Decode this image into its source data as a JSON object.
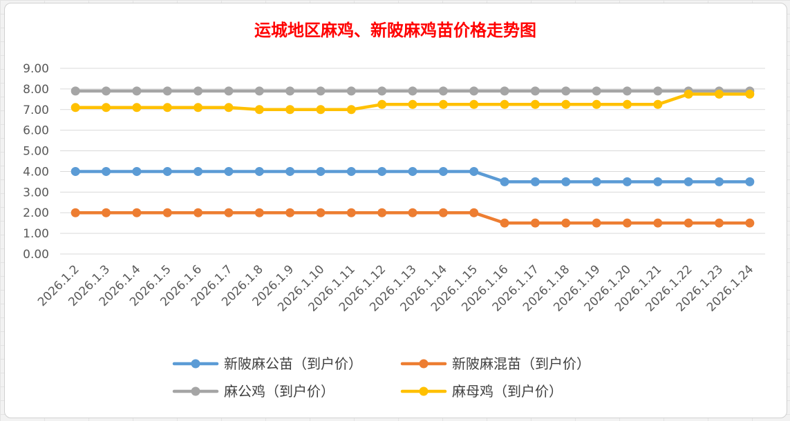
{
  "chart_data": {
    "type": "line",
    "title": "运城地区麻鸡、新陂麻鸡苗价格走势图",
    "xlabel": "",
    "ylabel": "",
    "ylim": [
      0,
      9
    ],
    "y_ticks": [
      "0.00",
      "1.00",
      "2.00",
      "3.00",
      "4.00",
      "5.00",
      "6.00",
      "7.00",
      "8.00",
      "9.00"
    ],
    "categories": [
      "2026.1.2",
      "2026.1.3",
      "2026.1.4",
      "2026.1.5",
      "2026.1.6",
      "2026.1.7",
      "2026.1.8",
      "2026.1.9",
      "2026.1.10",
      "2026.1.11",
      "2026.1.12",
      "2026.1.13",
      "2026.1.14",
      "2026.1.15",
      "2026.1.16",
      "2026.1.17",
      "2026.1.18",
      "2026.1.19",
      "2026.1.20",
      "2026.1.21",
      "2026.1.22",
      "2026.1.23",
      "2026.1.24"
    ],
    "grid": true,
    "legend_position": "bottom",
    "series": [
      {
        "name": "新陂麻公苗（到户价）",
        "color": "#5b9bd5",
        "values": [
          4.0,
          4.0,
          4.0,
          4.0,
          4.0,
          4.0,
          4.0,
          4.0,
          4.0,
          4.0,
          4.0,
          4.0,
          4.0,
          4.0,
          3.5,
          3.5,
          3.5,
          3.5,
          3.5,
          3.5,
          3.5,
          3.5,
          3.5
        ]
      },
      {
        "name": "新陂麻混苗（到户价）",
        "color": "#ed7d31",
        "values": [
          2.0,
          2.0,
          2.0,
          2.0,
          2.0,
          2.0,
          2.0,
          2.0,
          2.0,
          2.0,
          2.0,
          2.0,
          2.0,
          2.0,
          1.5,
          1.5,
          1.5,
          1.5,
          1.5,
          1.5,
          1.5,
          1.5,
          1.5
        ]
      },
      {
        "name": "麻公鸡（到户价）",
        "color": "#a5a5a5",
        "values": [
          7.9,
          7.9,
          7.9,
          7.9,
          7.9,
          7.9,
          7.9,
          7.9,
          7.9,
          7.9,
          7.9,
          7.9,
          7.9,
          7.9,
          7.9,
          7.9,
          7.9,
          7.9,
          7.9,
          7.9,
          7.9,
          7.9,
          7.9
        ]
      },
      {
        "name": "麻母鸡（到户价）",
        "color": "#ffc000",
        "values": [
          7.1,
          7.1,
          7.1,
          7.1,
          7.1,
          7.1,
          7.0,
          7.0,
          7.0,
          7.0,
          7.25,
          7.25,
          7.25,
          7.25,
          7.25,
          7.25,
          7.25,
          7.25,
          7.25,
          7.25,
          7.75,
          7.75,
          7.75
        ]
      }
    ]
  }
}
